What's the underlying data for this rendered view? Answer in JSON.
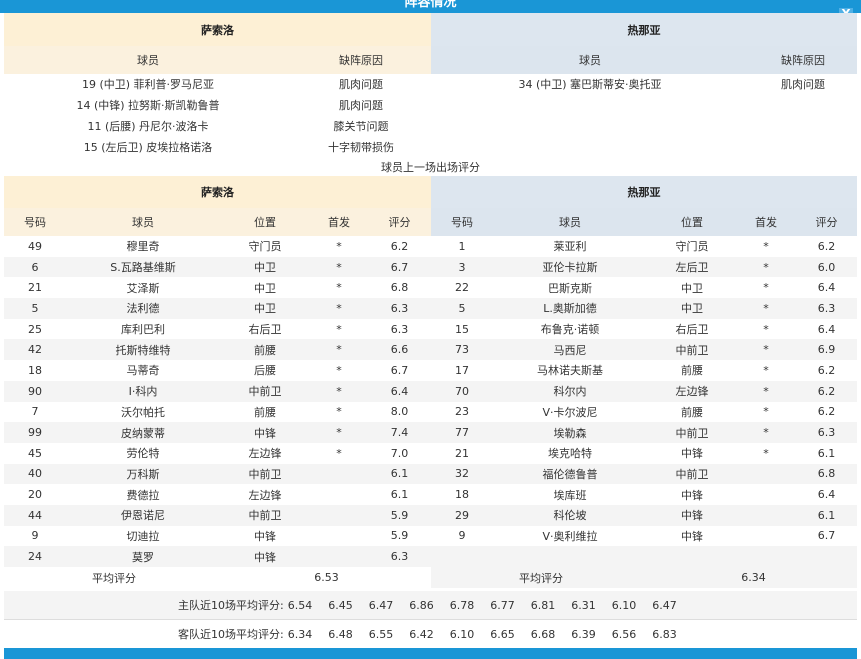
{
  "title": "阵容情况",
  "close_label": "X",
  "injury": {
    "home_team": "萨索洛",
    "away_team": "热那亚",
    "col_player": "球员",
    "col_reason": "缺阵原因",
    "home": [
      {
        "player": "19 (中卫) 菲利普·罗马尼亚",
        "reason": "肌肉问题"
      },
      {
        "player": "14 (中锋) 拉努斯·斯凯勒鲁普",
        "reason": "肌肉问题"
      },
      {
        "player": "11 (后腰) 丹尼尔·波洛卡",
        "reason": "膝关节问题"
      },
      {
        "player": "15 (左后卫) 皮埃拉格诺洛",
        "reason": "十字韧带损伤"
      }
    ],
    "away": [
      {
        "player": "34 (中卫) 塞巴斯蒂安·奥托亚",
        "reason": "肌肉问题"
      }
    ]
  },
  "ratings_caption": "球员上一场出场评分",
  "ratings": {
    "home_team": "萨索洛",
    "away_team": "热那亚",
    "columns": [
      "号码",
      "球员",
      "位置",
      "首发",
      "评分"
    ],
    "home": [
      [
        "49",
        "穆里奇",
        "守门员",
        "*",
        "6.2"
      ],
      [
        "6",
        "S.瓦路基维斯",
        "中卫",
        "*",
        "6.7"
      ],
      [
        "21",
        "艾泽斯",
        "中卫",
        "*",
        "6.8"
      ],
      [
        "5",
        "法利德",
        "中卫",
        "*",
        "6.3"
      ],
      [
        "25",
        "库利巴利",
        "右后卫",
        "*",
        "6.3"
      ],
      [
        "42",
        "托斯特维特",
        "前腰",
        "*",
        "6.6"
      ],
      [
        "18",
        "马蒂奇",
        "后腰",
        "*",
        "6.7"
      ],
      [
        "90",
        "I·科内",
        "中前卫",
        "*",
        "6.4"
      ],
      [
        "7",
        "沃尔帕托",
        "前腰",
        "*",
        "8.0"
      ],
      [
        "99",
        "皮纳蒙蒂",
        "中锋",
        "*",
        "7.4"
      ],
      [
        "45",
        "劳伦特",
        "左边锋",
        "*",
        "7.0"
      ],
      [
        "40",
        "万科斯",
        "中前卫",
        "",
        "6.1"
      ],
      [
        "20",
        "费德拉",
        "左边锋",
        "",
        "6.1"
      ],
      [
        "44",
        "伊恩诺尼",
        "中前卫",
        "",
        "5.9"
      ],
      [
        "9",
        "切迪拉",
        "中锋",
        "",
        "5.9"
      ],
      [
        "24",
        "莫罗",
        "中锋",
        "",
        "6.3"
      ]
    ],
    "away": [
      [
        "1",
        "莱亚利",
        "守门员",
        "*",
        "6.2"
      ],
      [
        "3",
        "亚伦卡拉斯",
        "左后卫",
        "*",
        "6.0"
      ],
      [
        "22",
        "巴斯克斯",
        "中卫",
        "*",
        "6.4"
      ],
      [
        "5",
        "L.奥斯加德",
        "中卫",
        "*",
        "6.3"
      ],
      [
        "15",
        "布鲁克·诺顿",
        "右后卫",
        "*",
        "6.4"
      ],
      [
        "73",
        "马西尼",
        "中前卫",
        "*",
        "6.9"
      ],
      [
        "17",
        "马林诺夫斯基",
        "前腰",
        "*",
        "6.2"
      ],
      [
        "70",
        "科尔内",
        "左边锋",
        "*",
        "6.2"
      ],
      [
        "23",
        "V·卡尔波尼",
        "前腰",
        "*",
        "6.2"
      ],
      [
        "77",
        "埃勒森",
        "中前卫",
        "*",
        "6.3"
      ],
      [
        "21",
        "埃克哈特",
        "中锋",
        "*",
        "6.1"
      ],
      [
        "32",
        "福伦德鲁普",
        "中前卫",
        "",
        "6.8"
      ],
      [
        "18",
        "埃库班",
        "中锋",
        "",
        "6.4"
      ],
      [
        "29",
        "科伦坡",
        "中锋",
        "",
        "6.1"
      ],
      [
        "9",
        "V·奥利维拉",
        "中锋",
        "",
        "6.7"
      ]
    ],
    "avg_label": "平均评分",
    "home_avg": "6.53",
    "away_avg": "6.34"
  },
  "recent": {
    "home_label": "主队近10场平均评分:",
    "home": [
      "6.54",
      "6.45",
      "6.47",
      "6.86",
      "6.78",
      "6.77",
      "6.81",
      "6.31",
      "6.10",
      "6.47"
    ],
    "away_label": "客队近10场平均评分:",
    "away": [
      "6.34",
      "6.48",
      "6.55",
      "6.42",
      "6.10",
      "6.65",
      "6.68",
      "6.39",
      "6.56",
      "6.83"
    ]
  },
  "colors": {
    "accent": "#1a96d6",
    "home_bg": "#fdf0d5",
    "away_bg": "#dde6ef"
  }
}
